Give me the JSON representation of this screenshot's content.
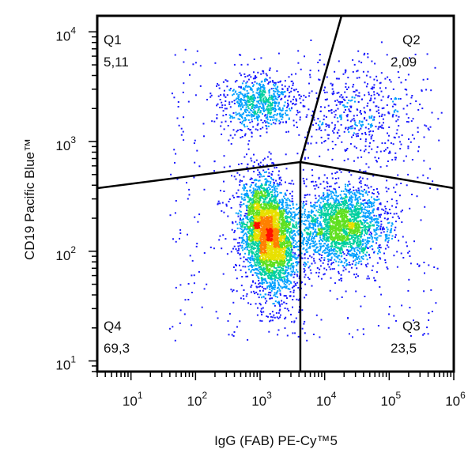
{
  "chart_data": {
    "type": "scatter",
    "subtype": "flow-cytometry-density-dot-plot",
    "xlabel": "IgG (FAB) PE-Cy™5",
    "ylabel": "CD19 Pacific Blue™",
    "x_scale": "log",
    "y_scale": "log",
    "xlim": [
      3,
      1000000
    ],
    "ylim": [
      8,
      14000
    ],
    "x_ticks": [
      {
        "value": 10,
        "base": "10",
        "exp": "1"
      },
      {
        "value": 100,
        "base": "10",
        "exp": "2"
      },
      {
        "value": 1000,
        "base": "10",
        "exp": "3"
      },
      {
        "value": 10000,
        "base": "10",
        "exp": "4"
      },
      {
        "value": 100000,
        "base": "10",
        "exp": "5"
      },
      {
        "value": 1000000,
        "base": "10",
        "exp": "6"
      }
    ],
    "y_ticks": [
      {
        "value": 10,
        "base": "10",
        "exp": "1"
      },
      {
        "value": 100,
        "base": "10",
        "exp": "2"
      },
      {
        "value": 1000,
        "base": "10",
        "exp": "3"
      },
      {
        "value": 10000,
        "base": "10",
        "exp": "4"
      }
    ],
    "gate_center": [
      4200,
      650
    ],
    "quadrants": [
      {
        "name": "Q1",
        "value": "5,11",
        "position": "top-left"
      },
      {
        "name": "Q2",
        "value": "2,09",
        "position": "top-right"
      },
      {
        "name": "Q3",
        "value": "23,5",
        "position": "bottom-right"
      },
      {
        "name": "Q4",
        "value": "69,3",
        "position": "bottom-left"
      }
    ],
    "populations": [
      {
        "center": [
          1300,
          150
        ],
        "percent": 69.3
      },
      {
        "center": [
          18000,
          175
        ],
        "percent": 23.5
      },
      {
        "center": [
          950,
          2300
        ],
        "percent": 5.11
      },
      {
        "center": [
          30000,
          1800
        ],
        "percent": 2.09
      }
    ],
    "color_scale": [
      "#1a1aff",
      "#00a0ff",
      "#00d0a0",
      "#60e020",
      "#e8e000",
      "#ff8000",
      "#ff1000"
    ]
  }
}
